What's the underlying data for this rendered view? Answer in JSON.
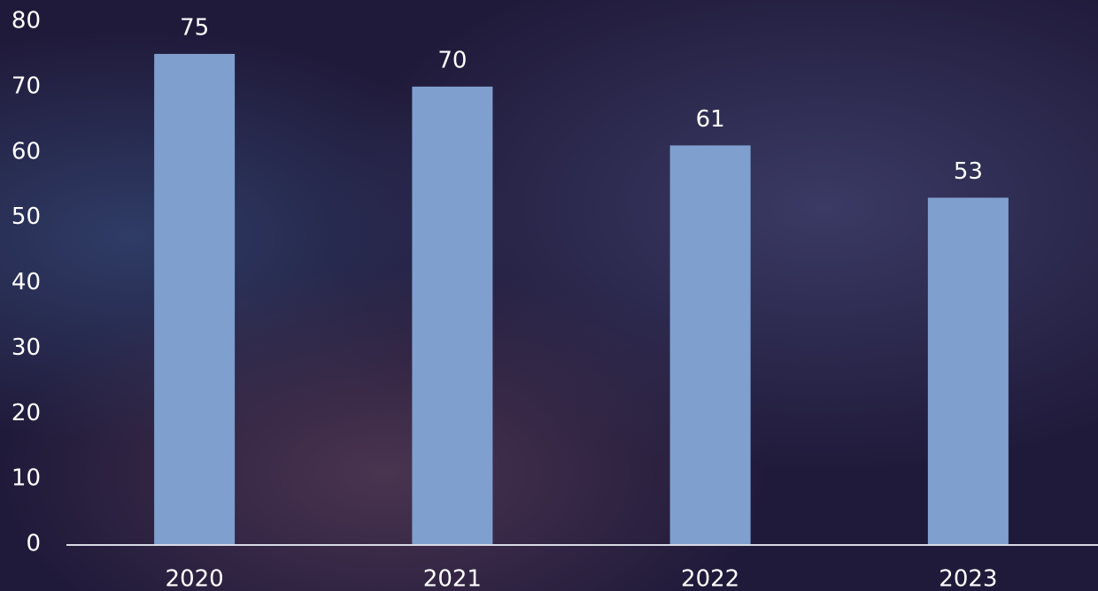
{
  "chart_data": {
    "type": "bar",
    "categories": [
      "2020",
      "2021",
      "2022",
      "2023"
    ],
    "values": [
      75,
      70,
      61,
      53
    ],
    "color": "#7f9fcf",
    "ylim": [
      0,
      80
    ],
    "yticks": [
      0,
      10,
      20,
      30,
      40,
      50,
      60,
      70,
      80
    ],
    "grid": false
  }
}
